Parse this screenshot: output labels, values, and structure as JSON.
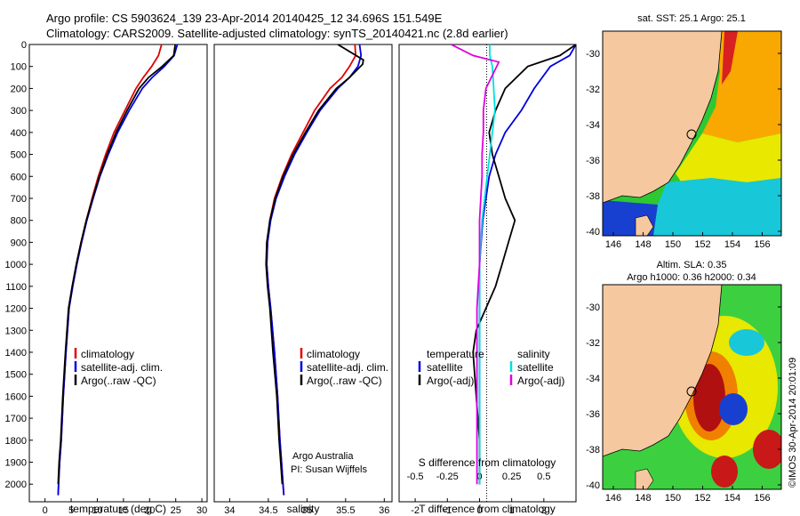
{
  "header": {
    "line1": "Argo profile: CS 5903624_139 23-Apr-2014 20140425_12 34.696S 151.549E",
    "line2": "Climatology: CARS2009. Satellite-adjusted climatology: synTS_20140421.nc (2.8d earlier)"
  },
  "colors": {
    "climatology": "#e00000",
    "satellite": "#0000e0",
    "argo": "#000000",
    "satellite_s": "#00e0e0",
    "argo_s": "#e000e0",
    "land": "#f5c8a0"
  },
  "depth_ticks": [
    "0",
    "100",
    "200",
    "300",
    "400",
    "500",
    "600",
    "700",
    "800",
    "900",
    "1000",
    "1100",
    "1200",
    "1300",
    "1400",
    "1500",
    "1600",
    "1700",
    "1800",
    "1900",
    "2000"
  ],
  "panels": {
    "temperature": {
      "xlabel": "temperature (deg C)",
      "ticks": [
        "0",
        "5",
        "10",
        "15",
        "20",
        "25",
        "30"
      ],
      "legend": [
        "climatology",
        "satellite-adj. clim.",
        "Argo(..raw -QC)"
      ]
    },
    "salinity": {
      "xlabel": "salinity",
      "ticks": [
        "34",
        "34.5",
        "35",
        "35.5",
        "36"
      ],
      "legend": [
        "climatology",
        "satellite-adj. clim.",
        "Argo(..raw -QC)"
      ],
      "note1": "Argo Australia",
      "note2": "PI: Susan Wijffels"
    },
    "difference": {
      "xlabel_bottom": "T difference from climatology",
      "xlabel_top": "S difference from climatology",
      "ticks_t": [
        "-2",
        "-1",
        "0",
        "1",
        "2"
      ],
      "ticks_s": [
        "-0.5",
        "-0.25",
        "0",
        "0.25",
        "0.5"
      ],
      "legend_t_title": "temperature",
      "legend_s_title": "salinity",
      "legend_t": [
        "satellite",
        "Argo(-adj)"
      ],
      "legend_s": [
        "satellite",
        "Argo(-adj)"
      ]
    }
  },
  "maps": {
    "sst_title": "sat. SST: 25.1  Argo: 25.1",
    "sla_title1": "Altim. SLA: 0.35",
    "sla_title2": "Argo h1000: 0.36 h2000: 0.34",
    "lat_ticks": [
      "-30",
      "-32",
      "-34",
      "-36",
      "-38",
      "-40"
    ],
    "lon_ticks": [
      "146",
      "148",
      "150",
      "152",
      "154",
      "156"
    ],
    "side_label": "©IMOS 30-Apr-2014 20:01:09"
  },
  "chart_data": [
    {
      "type": "line",
      "title": "",
      "xlabel": "temperature (deg C)",
      "ylabel": "",
      "xlim": [
        -3,
        31
      ],
      "ylim": [
        2080,
        0
      ],
      "series": [
        {
          "name": "climatology",
          "x": [
            22.3,
            21.7,
            20.4,
            18.8,
            17.4,
            15.3,
            13.2,
            11.6,
            10.2,
            9.0,
            7.9,
            6.9,
            6.0,
            5.3,
            4.6,
            4.0,
            3.5,
            3.1,
            2.8,
            2.6,
            2.5
          ],
          "y": [
            0,
            50,
            100,
            150,
            200,
            300,
            400,
            500,
            600,
            700,
            800,
            900,
            1000,
            1100,
            1200,
            1400,
            1600,
            1800,
            1900,
            2000,
            2050
          ]
        },
        {
          "name": "satellite-adj. clim.",
          "x": [
            25.3,
            24.7,
            22.8,
            20.5,
            18.6,
            16.1,
            13.9,
            12.1,
            10.5,
            9.2,
            8.0,
            7.0,
            6.1,
            5.3,
            4.6,
            4.0,
            3.5,
            3.1,
            2.8,
            2.6,
            2.5
          ],
          "y": [
            0,
            50,
            100,
            150,
            200,
            300,
            400,
            500,
            600,
            700,
            800,
            900,
            1000,
            1100,
            1200,
            1400,
            1600,
            1800,
            1900,
            2000,
            2050
          ]
        },
        {
          "name": "Argo(..raw -QC)",
          "x": [
            24.9,
            24.6,
            22.4,
            19.8,
            18.0,
            15.7,
            13.6,
            11.9,
            10.4,
            9.1,
            7.9,
            6.9,
            6.0,
            5.2,
            4.5,
            3.9,
            3.4,
            3.0,
            2.7,
            2.5
          ],
          "y": [
            0,
            50,
            100,
            150,
            200,
            300,
            400,
            500,
            600,
            700,
            800,
            900,
            1000,
            1100,
            1200,
            1400,
            1600,
            1800,
            1900,
            2000
          ]
        }
      ]
    },
    {
      "type": "line",
      "title": "",
      "xlabel": "salinity",
      "ylabel": "",
      "xlim": [
        33.8,
        36.1
      ],
      "ylim": [
        2080,
        0
      ],
      "series": [
        {
          "name": "climatology",
          "x": [
            35.62,
            35.63,
            35.55,
            35.45,
            35.3,
            35.1,
            34.95,
            34.8,
            34.68,
            34.58,
            34.52,
            34.49,
            34.48,
            34.5,
            34.53,
            34.58,
            34.62,
            34.65,
            34.67,
            34.69,
            34.7
          ],
          "y": [
            0,
            50,
            100,
            150,
            200,
            300,
            400,
            500,
            600,
            700,
            800,
            900,
            1000,
            1100,
            1200,
            1400,
            1600,
            1800,
            1900,
            2000,
            2050
          ]
        },
        {
          "name": "satellite-adj. clim.",
          "x": [
            35.68,
            35.7,
            35.66,
            35.55,
            35.4,
            35.17,
            35.0,
            34.84,
            34.71,
            34.6,
            34.53,
            34.49,
            34.48,
            34.5,
            34.53,
            34.58,
            34.62,
            34.65,
            34.67,
            34.69,
            34.7
          ],
          "y": [
            0,
            50,
            100,
            150,
            200,
            300,
            400,
            500,
            600,
            700,
            800,
            900,
            1000,
            1100,
            1200,
            1400,
            1600,
            1800,
            1900,
            2000,
            2050
          ]
        },
        {
          "name": "Argo(..raw -QC)",
          "x": [
            35.4,
            35.73,
            35.72,
            35.55,
            35.38,
            35.15,
            34.98,
            34.82,
            34.69,
            34.59,
            34.52,
            34.48,
            34.47,
            34.49,
            34.52,
            34.56,
            34.61,
            34.64,
            34.66,
            34.68
          ],
          "y": [
            0,
            70,
            90,
            150,
            200,
            300,
            400,
            500,
            600,
            700,
            800,
            900,
            1000,
            1100,
            1200,
            1400,
            1600,
            1800,
            1900,
            2000
          ]
        }
      ]
    },
    {
      "type": "line",
      "title": "",
      "xlabel": "T difference from climatology",
      "ylabel": "",
      "xlim": [
        -2.5,
        3.0
      ],
      "ylim": [
        2080,
        0
      ],
      "series": [
        {
          "name": "satellite",
          "x": [
            3.0,
            2.8,
            2.2,
            1.7,
            1.3,
            0.8,
            0.5,
            0.3,
            0.2,
            0.1,
            0.05,
            0.0,
            0.0,
            0.0,
            0.0,
            0.0,
            0.0,
            0.0
          ],
          "y": [
            0,
            50,
            100,
            200,
            300,
            400,
            500,
            600,
            700,
            800,
            900,
            1000,
            1100,
            1200,
            1400,
            1600,
            1800,
            2000
          ]
        },
        {
          "name": "Argo(-adj)",
          "x": [
            3.0,
            2.5,
            1.5,
            0.8,
            0.5,
            0.3,
            0.4,
            0.6,
            0.8,
            1.1,
            0.9,
            0.7,
            0.5,
            0.2,
            -0.1,
            -0.2,
            -0.1,
            0.0,
            0.0
          ],
          "y": [
            0,
            50,
            100,
            200,
            300,
            400,
            500,
            600,
            700,
            800,
            900,
            1000,
            1100,
            1200,
            1300,
            1400,
            1600,
            1800,
            2000
          ]
        }
      ]
    },
    {
      "type": "line",
      "title": "",
      "xlabel": "S difference from climatology",
      "ylabel": "",
      "xlim": [
        -0.625,
        0.75
      ],
      "ylim": [
        2080,
        0
      ],
      "series": [
        {
          "name": "satellite",
          "x": [
            0.08,
            0.08,
            0.1,
            0.11,
            0.12,
            0.1,
            0.08,
            0.06,
            0.04,
            0.02,
            0.01,
            0.0,
            0.0,
            0.0,
            0.0,
            0.0,
            0.0,
            0.0
          ],
          "y": [
            0,
            50,
            100,
            200,
            300,
            400,
            500,
            600,
            700,
            800,
            900,
            1000,
            1100,
            1200,
            1400,
            1600,
            1800,
            2000
          ]
        },
        {
          "name": "Argo(-adj)",
          "x": [
            -0.22,
            -0.05,
            0.15,
            0.05,
            0.03,
            0.03,
            0.02,
            0.02,
            0.01,
            0.0,
            0.0,
            0.0,
            -0.01,
            -0.02,
            -0.02,
            -0.02,
            -0.02,
            -0.02
          ],
          "y": [
            0,
            50,
            80,
            200,
            300,
            400,
            500,
            600,
            700,
            800,
            900,
            1000,
            1100,
            1200,
            1400,
            1600,
            1800,
            2000
          ]
        }
      ]
    }
  ]
}
